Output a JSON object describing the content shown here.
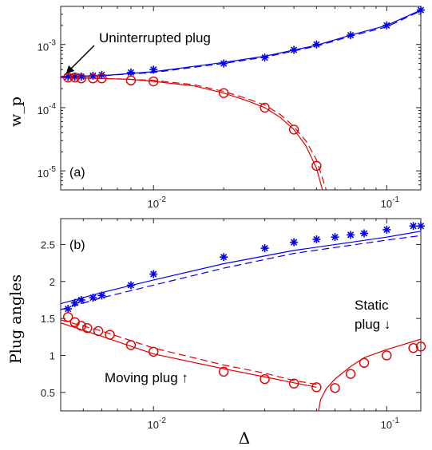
{
  "chart_data": [
    {
      "panel": "(a)",
      "type": "scatter",
      "title": "",
      "xlabel": "",
      "ylabel": "w_p",
      "xscale": "log",
      "yscale": "log",
      "xlim": [
        0.004,
        0.14
      ],
      "ylim": [
        5e-06,
        0.004
      ],
      "xticks": [
        {
          "value": 0.01,
          "label": "10^-2"
        },
        {
          "value": 0.1,
          "label": "10^-1"
        }
      ],
      "yticks": [
        {
          "value": 1e-05,
          "label": "10^-5"
        },
        {
          "value": 0.0001,
          "label": "10^-4"
        },
        {
          "value": 0.001,
          "label": "10^-3"
        }
      ],
      "grid": false,
      "series": [
        {
          "marker": "star",
          "color": "#0000ee",
          "x": [
            0.0043,
            0.0046,
            0.0049,
            0.0055,
            0.006,
            0.008,
            0.01,
            0.02,
            0.03,
            0.04,
            0.05,
            0.07,
            0.1,
            0.14
          ],
          "y": [
            0.00031,
            0.00031,
            0.00031,
            0.00032,
            0.00033,
            0.00036,
            0.0004,
            0.0005,
            0.00062,
            0.00082,
            0.001,
            0.0014,
            0.002,
            0.0035
          ]
        },
        {
          "marker": "circle",
          "color": "#e00000",
          "x": [
            0.0043,
            0.0046,
            0.0049,
            0.0055,
            0.006,
            0.008,
            0.01,
            0.02,
            0.03,
            0.04,
            0.05
          ],
          "y": [
            0.0003,
            0.0003,
            0.00029,
            0.00029,
            0.00029,
            0.00027,
            0.00026,
            0.00017,
            0.0001,
            4.5e-05,
            1.2e-05
          ]
        }
      ],
      "curves": [
        {
          "style": "solid",
          "color": "#0000ee",
          "x": [
            0.004,
            0.006,
            0.01,
            0.02,
            0.03,
            0.05,
            0.07,
            0.1,
            0.14
          ],
          "y": [
            0.00031,
            0.00032,
            0.00037,
            0.00052,
            0.00065,
            0.00097,
            0.0014,
            0.002,
            0.0035
          ]
        },
        {
          "style": "dashed",
          "color": "#0000ee",
          "x": [
            0.004,
            0.006,
            0.01,
            0.02,
            0.03,
            0.05,
            0.07,
            0.1,
            0.14
          ],
          "y": [
            0.00031,
            0.00032,
            0.00036,
            0.0005,
            0.00063,
            0.00094,
            0.00135,
            0.0019,
            0.0034
          ]
        },
        {
          "style": "solid",
          "color": "#e00000",
          "x": [
            0.004,
            0.006,
            0.008,
            0.01,
            0.015,
            0.02,
            0.025,
            0.03,
            0.035,
            0.04,
            0.045,
            0.05,
            0.053
          ],
          "y": [
            0.0003,
            0.00029,
            0.00028,
            0.00026,
            0.00022,
            0.00017,
            0.00013,
            0.0001,
            7e-05,
            4.5e-05,
            2.5e-05,
            1.1e-05,
            5e-06
          ]
        },
        {
          "style": "dashed",
          "color": "#e00000",
          "x": [
            0.004,
            0.006,
            0.008,
            0.01,
            0.015,
            0.02,
            0.025,
            0.03,
            0.035,
            0.04,
            0.045,
            0.05,
            0.055
          ],
          "y": [
            0.0003,
            0.00029,
            0.00028,
            0.00027,
            0.00023,
            0.00018,
            0.00014,
            0.00011,
            7.8e-05,
            5e-05,
            3e-05,
            1.5e-05,
            5e-06
          ]
        }
      ],
      "annotations": [
        {
          "text": "Uninterrupted plug",
          "arrow_to": {
            "x": 0.0041,
            "y": 0.00031
          }
        }
      ]
    },
    {
      "panel": "(b)",
      "type": "scatter",
      "title": "",
      "xlabel": "Δ",
      "ylabel": "Plug angles",
      "xscale": "log",
      "yscale": "linear",
      "xlim": [
        0.004,
        0.14
      ],
      "ylim": [
        0.25,
        2.85
      ],
      "xticks": [
        {
          "value": 0.01,
          "label": "10^-2"
        },
        {
          "value": 0.1,
          "label": "10^-1"
        }
      ],
      "yticks": [
        {
          "value": 0.5,
          "label": "0.5"
        },
        {
          "value": 1,
          "label": "1"
        },
        {
          "value": 1.5,
          "label": "1.5"
        },
        {
          "value": 2,
          "label": "2"
        },
        {
          "value": 2.5,
          "label": "2.5"
        }
      ],
      "grid": false,
      "series": [
        {
          "marker": "star",
          "color": "#0000ee",
          "x": [
            0.0043,
            0.0046,
            0.0049,
            0.0055,
            0.006,
            0.008,
            0.01,
            0.02,
            0.03,
            0.04,
            0.05,
            0.06,
            0.07,
            0.08,
            0.1,
            0.13,
            0.14
          ],
          "y": [
            1.63,
            1.71,
            1.75,
            1.78,
            1.81,
            1.95,
            2.1,
            2.33,
            2.45,
            2.53,
            2.57,
            2.6,
            2.63,
            2.65,
            2.7,
            2.75,
            2.75
          ]
        },
        {
          "marker": "circle",
          "color": "#e00000",
          "x": [
            0.0043,
            0.0046,
            0.0049,
            0.0052,
            0.0058,
            0.0065,
            0.008,
            0.01,
            0.02,
            0.03,
            0.04,
            0.05,
            0.06,
            0.07,
            0.08,
            0.1,
            0.13,
            0.14
          ],
          "y": [
            1.52,
            1.45,
            1.4,
            1.37,
            1.33,
            1.28,
            1.14,
            1.05,
            0.78,
            0.68,
            0.62,
            0.57,
            0.56,
            0.75,
            0.9,
            1.0,
            1.1,
            1.12
          ]
        }
      ],
      "curves": [
        {
          "style": "solid",
          "color": "#0000ee",
          "x": [
            0.004,
            0.006,
            0.01,
            0.02,
            0.04,
            0.07,
            0.1,
            0.14
          ],
          "y": [
            1.7,
            1.85,
            2.02,
            2.24,
            2.42,
            2.53,
            2.6,
            2.68
          ]
        },
        {
          "style": "dashed",
          "color": "#0000ee",
          "x": [
            0.004,
            0.006,
            0.01,
            0.02,
            0.04,
            0.07,
            0.1,
            0.14
          ],
          "y": [
            1.62,
            1.78,
            1.95,
            2.18,
            2.38,
            2.49,
            2.56,
            2.62
          ]
        },
        {
          "style": "solid",
          "color": "#e00000",
          "x": [
            0.004,
            0.006,
            0.01,
            0.02,
            0.03,
            0.04,
            0.05
          ],
          "y": [
            1.44,
            1.26,
            1.02,
            0.82,
            0.71,
            0.63,
            0.57
          ]
        },
        {
          "style": "dashed",
          "color": "#e00000",
          "x": [
            0.004,
            0.006,
            0.01,
            0.02,
            0.03,
            0.04,
            0.05
          ],
          "y": [
            1.48,
            1.33,
            1.1,
            0.87,
            0.76,
            0.66,
            0.61
          ]
        },
        {
          "style": "solid",
          "color": "#e00000",
          "x": [
            0.051,
            0.052,
            0.055,
            0.06,
            0.07,
            0.08,
            0.1,
            0.14
          ],
          "y": [
            0.25,
            0.4,
            0.55,
            0.68,
            0.85,
            0.97,
            1.08,
            1.22
          ]
        }
      ],
      "annotations": [
        {
          "text": "Static"
        },
        {
          "text": "plug ↓"
        },
        {
          "text": "Moving plug ↑"
        }
      ]
    }
  ]
}
